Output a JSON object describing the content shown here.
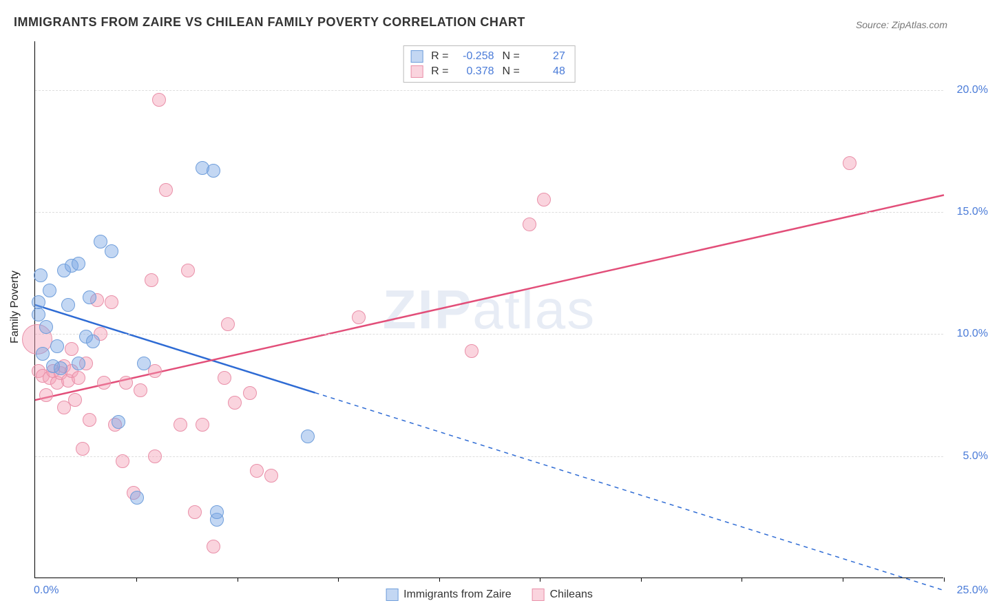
{
  "title": "IMMIGRANTS FROM ZAIRE VS CHILEAN FAMILY POVERTY CORRELATION CHART",
  "source": "Source: ZipAtlas.com",
  "watermark_a": "ZIP",
  "watermark_b": "atlas",
  "yaxis_title": "Family Poverty",
  "chart": {
    "type": "scatter",
    "background_color": "#ffffff",
    "grid_color": "#dddddd",
    "xlim": [
      0,
      25
    ],
    "ylim": [
      0,
      22
    ],
    "x_origin_label": "0.0%",
    "x_end_label": "25.0%",
    "x_tick_positions": [
      2.78,
      5.56,
      8.33,
      11.11,
      13.89,
      16.67,
      19.44,
      22.22,
      25.0
    ],
    "y_gridlines": [
      {
        "value": 5,
        "label": "5.0%"
      },
      {
        "value": 10,
        "label": "10.0%"
      },
      {
        "value": 15,
        "label": "15.0%"
      },
      {
        "value": 20,
        "label": "20.0%"
      }
    ],
    "series": [
      {
        "id": "zaire",
        "name": "Immigrants from Zaire",
        "fill": "rgba(122,167,229,0.45)",
        "stroke": "#6f9edb",
        "line_color": "#2e6bd4",
        "marker_radius": 10,
        "marker_border": 1,
        "R": "-0.258",
        "N": "27",
        "trend": {
          "x1": 0,
          "y1": 11.2,
          "x2": 7.7,
          "y2": 7.6,
          "extend_to_x": 25,
          "extend_y": -0.5,
          "width": 2.5,
          "dash_extend": "6,6"
        },
        "points": [
          {
            "x": 0.1,
            "y": 10.8
          },
          {
            "x": 0.1,
            "y": 11.3
          },
          {
            "x": 0.15,
            "y": 12.4
          },
          {
            "x": 0.3,
            "y": 10.3
          },
          {
            "x": 0.2,
            "y": 9.2
          },
          {
            "x": 0.5,
            "y": 8.7
          },
          {
            "x": 0.7,
            "y": 8.6
          },
          {
            "x": 0.6,
            "y": 9.5
          },
          {
            "x": 0.8,
            "y": 12.6
          },
          {
            "x": 1.0,
            "y": 12.8
          },
          {
            "x": 0.9,
            "y": 11.2
          },
          {
            "x": 1.2,
            "y": 12.9
          },
          {
            "x": 1.4,
            "y": 9.9
          },
          {
            "x": 1.5,
            "y": 11.5
          },
          {
            "x": 1.8,
            "y": 13.8
          },
          {
            "x": 1.2,
            "y": 8.8
          },
          {
            "x": 2.1,
            "y": 13.4
          },
          {
            "x": 2.3,
            "y": 6.4
          },
          {
            "x": 2.8,
            "y": 3.3
          },
          {
            "x": 3.0,
            "y": 8.8
          },
          {
            "x": 4.6,
            "y": 16.8
          },
          {
            "x": 4.9,
            "y": 16.7
          },
          {
            "x": 5.0,
            "y": 2.4
          },
          {
            "x": 5.0,
            "y": 2.7
          },
          {
            "x": 7.5,
            "y": 5.8
          },
          {
            "x": 1.6,
            "y": 9.7
          },
          {
            "x": 0.4,
            "y": 11.8
          }
        ]
      },
      {
        "id": "chileans",
        "name": "Chileans",
        "fill": "rgba(244,160,182,0.45)",
        "stroke": "#e98fa8",
        "line_color": "#e24e79",
        "marker_radius": 10,
        "marker_border": 1,
        "R": "0.378",
        "N": "48",
        "trend": {
          "x1": 0,
          "y1": 7.3,
          "x2": 25,
          "y2": 15.7,
          "width": 2.5
        },
        "points": [
          {
            "x": 0.05,
            "y": 9.8,
            "r": 22
          },
          {
            "x": 0.1,
            "y": 8.5
          },
          {
            "x": 0.2,
            "y": 8.3
          },
          {
            "x": 0.4,
            "y": 8.2
          },
          {
            "x": 0.5,
            "y": 8.5
          },
          {
            "x": 0.6,
            "y": 8.0
          },
          {
            "x": 0.7,
            "y": 8.4
          },
          {
            "x": 0.8,
            "y": 8.7
          },
          {
            "x": 0.8,
            "y": 7.0
          },
          {
            "x": 0.9,
            "y": 8.1
          },
          {
            "x": 1.0,
            "y": 8.5
          },
          {
            "x": 1.0,
            "y": 9.4
          },
          {
            "x": 1.2,
            "y": 8.2
          },
          {
            "x": 1.3,
            "y": 5.3
          },
          {
            "x": 1.4,
            "y": 8.8
          },
          {
            "x": 1.5,
            "y": 6.5
          },
          {
            "x": 1.7,
            "y": 11.4
          },
          {
            "x": 1.9,
            "y": 8.0
          },
          {
            "x": 2.1,
            "y": 11.3
          },
          {
            "x": 2.2,
            "y": 6.3
          },
          {
            "x": 2.4,
            "y": 4.8
          },
          {
            "x": 2.5,
            "y": 8.0
          },
          {
            "x": 2.7,
            "y": 3.5
          },
          {
            "x": 2.9,
            "y": 7.7
          },
          {
            "x": 3.2,
            "y": 12.2
          },
          {
            "x": 3.3,
            "y": 8.5
          },
          {
            "x": 3.3,
            "y": 5.0
          },
          {
            "x": 3.4,
            "y": 19.6
          },
          {
            "x": 3.6,
            "y": 15.9
          },
          {
            "x": 4.0,
            "y": 6.3
          },
          {
            "x": 4.2,
            "y": 12.6
          },
          {
            "x": 4.4,
            "y": 2.7
          },
          {
            "x": 4.6,
            "y": 6.3
          },
          {
            "x": 4.9,
            "y": 1.3
          },
          {
            "x": 5.2,
            "y": 8.2
          },
          {
            "x": 5.3,
            "y": 10.4
          },
          {
            "x": 5.5,
            "y": 7.2
          },
          {
            "x": 5.9,
            "y": 7.6
          },
          {
            "x": 6.1,
            "y": 4.4
          },
          {
            "x": 6.5,
            "y": 4.2
          },
          {
            "x": 8.9,
            "y": 10.7
          },
          {
            "x": 12.0,
            "y": 9.3
          },
          {
            "x": 13.6,
            "y": 14.5
          },
          {
            "x": 14.0,
            "y": 15.5
          },
          {
            "x": 22.4,
            "y": 17.0
          },
          {
            "x": 1.8,
            "y": 10.0
          },
          {
            "x": 0.3,
            "y": 7.5
          },
          {
            "x": 1.1,
            "y": 7.3
          }
        ]
      }
    ]
  },
  "legend_stats": {
    "r_label": "R =",
    "n_label": "N ="
  }
}
